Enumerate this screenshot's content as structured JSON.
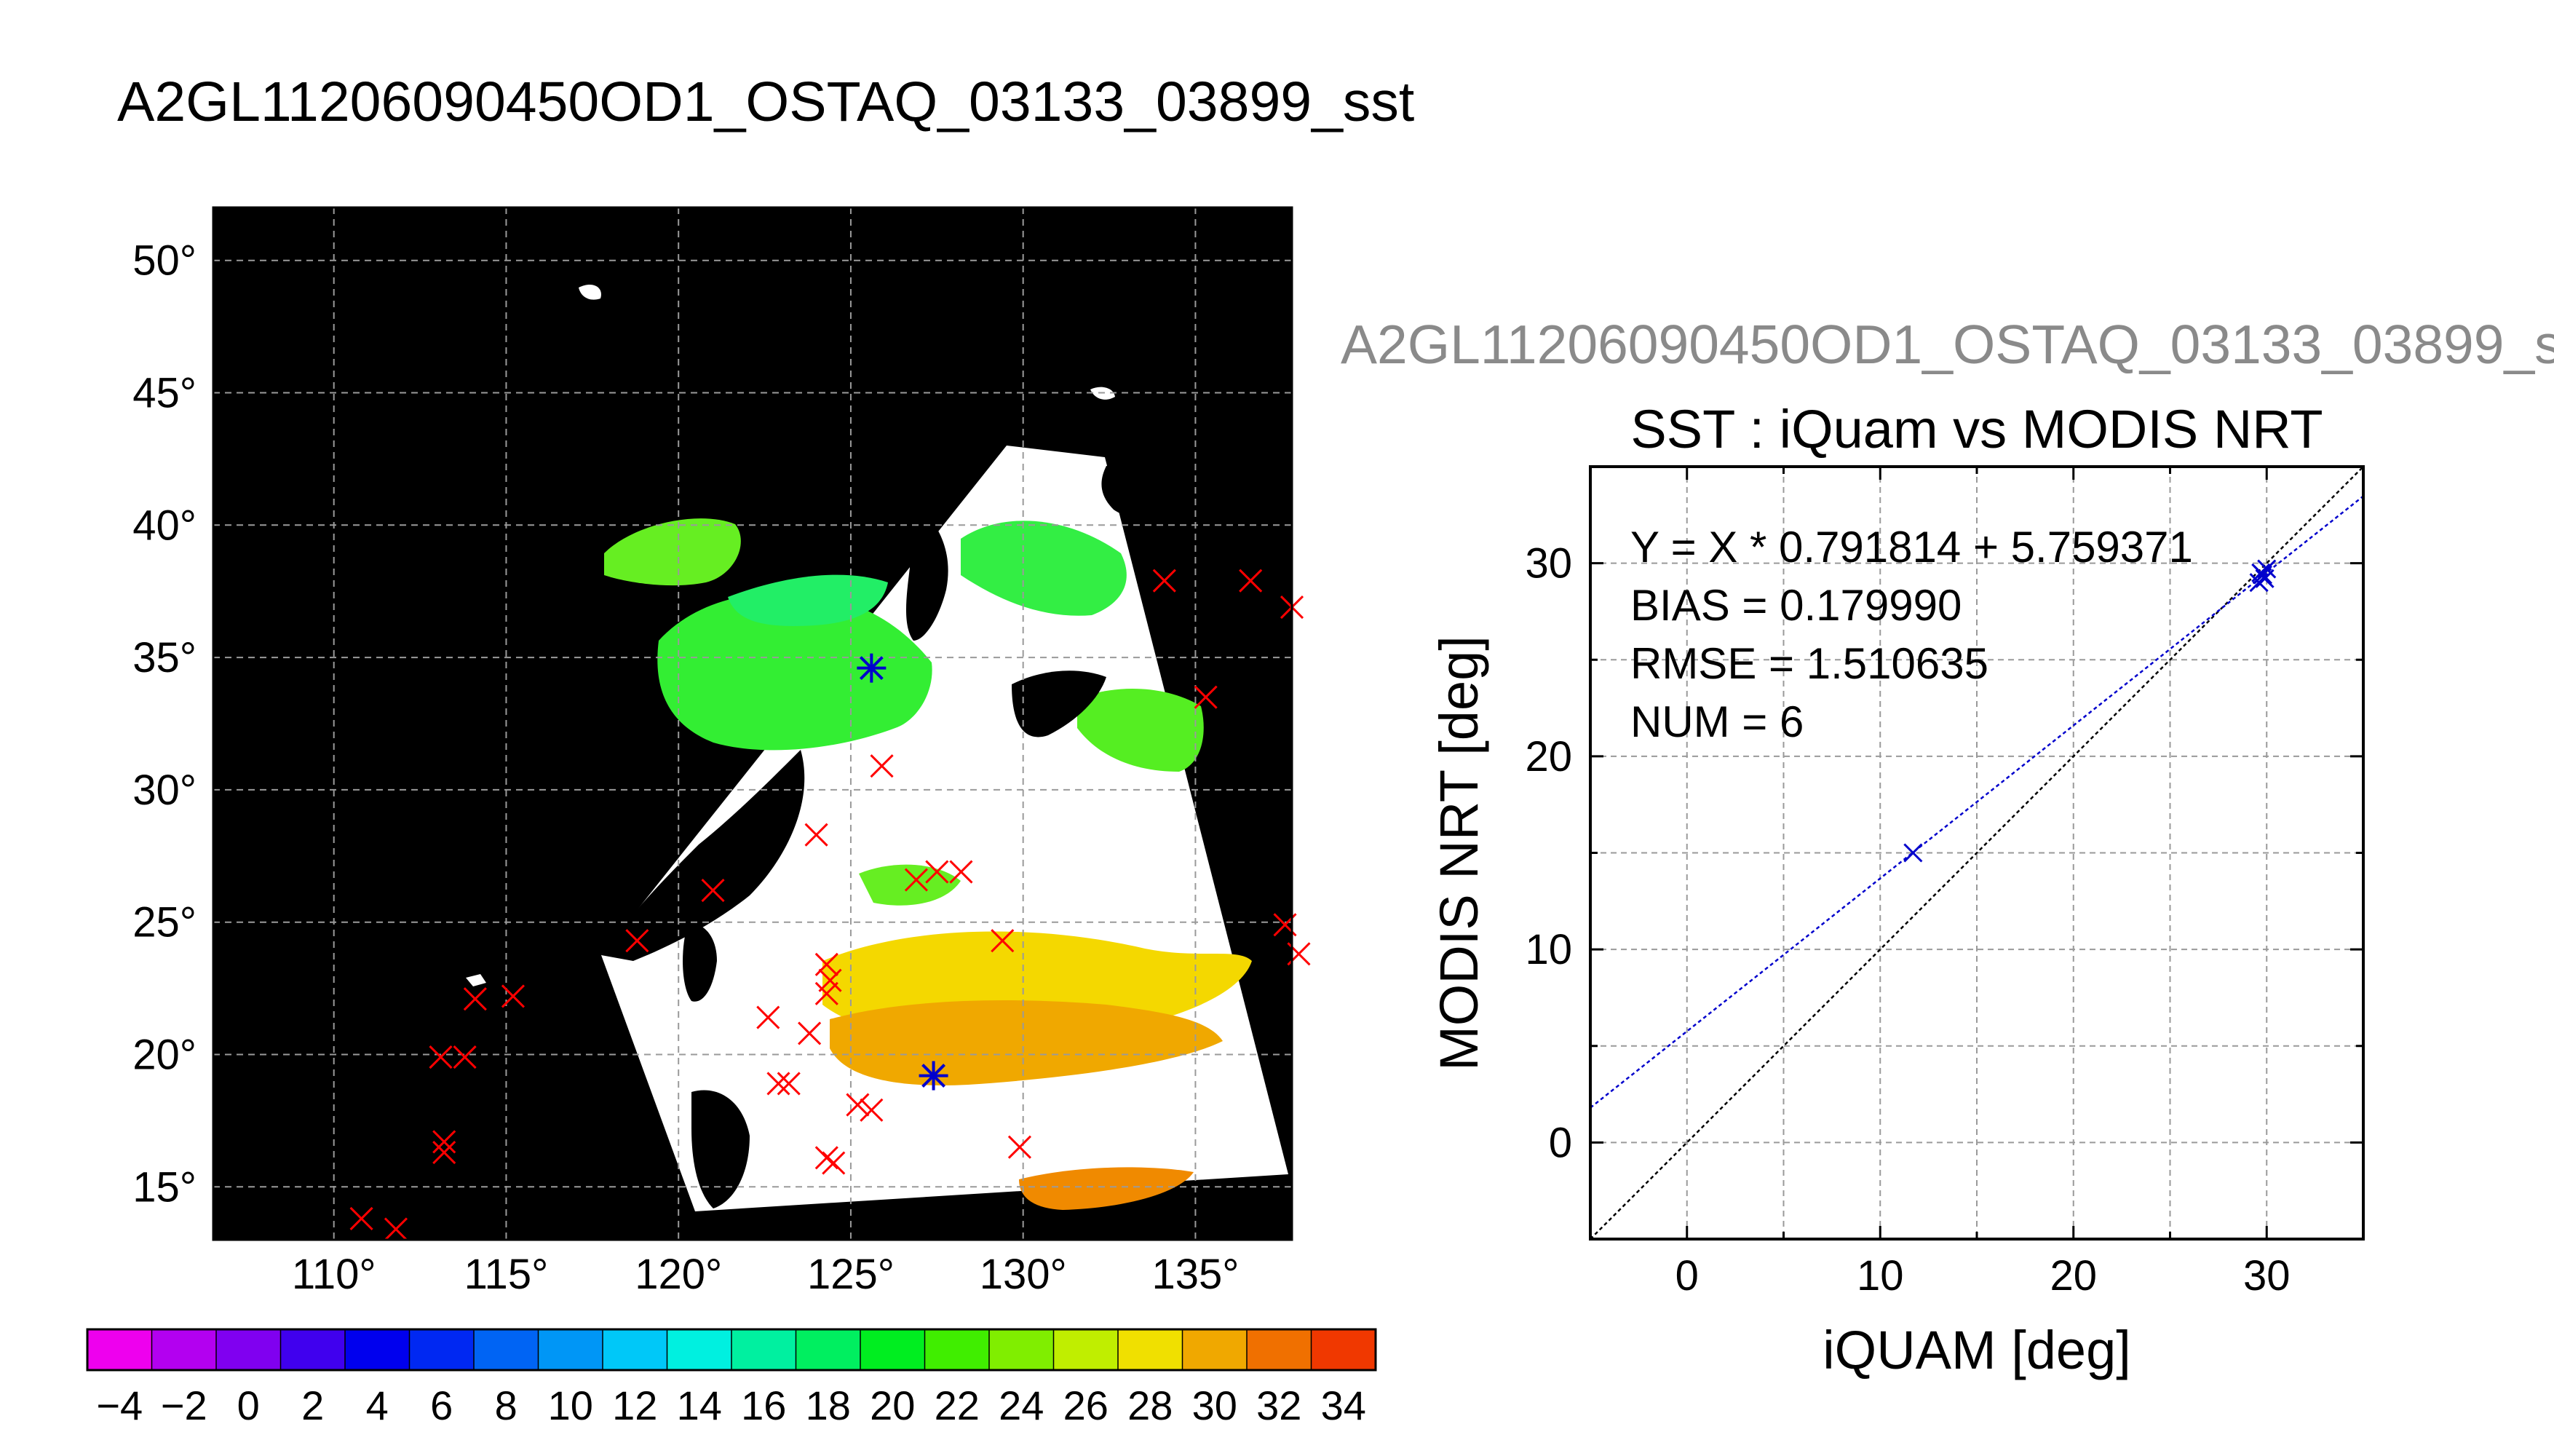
{
  "header": {
    "title": "A2GL11206090450OD1_OSTAQ_03133_03899_sst",
    "second_title": "A2GL11206090450OD1_OSTAQ_03133_03899_s"
  },
  "colors": {
    "map_background": "#000000",
    "match_marker": "#ff0000",
    "selected_marker": "#0000cc",
    "fit_line": "#0000cc",
    "one_to_one_line": "#000000"
  },
  "chart_data": [
    {
      "type": "map",
      "name": "sst-map",
      "lon_range": [
        106.5,
        137.8
      ],
      "lat_range": [
        13,
        52
      ],
      "xticks": [
        110,
        115,
        120,
        125,
        130,
        135
      ],
      "yticks": [
        15,
        20,
        25,
        30,
        35,
        40,
        45,
        50
      ],
      "tick_suffix": "°",
      "grid": true,
      "matchups": [
        [
          110.8,
          13.8
        ],
        [
          111.8,
          13.4
        ],
        [
          113.1,
          19.9
        ],
        [
          113.8,
          19.9
        ],
        [
          113.2,
          16.7
        ],
        [
          113.2,
          16.3
        ],
        [
          114.1,
          22.1
        ],
        [
          115.2,
          22.2
        ],
        [
          118.8,
          24.3
        ],
        [
          121.0,
          26.2
        ],
        [
          122.6,
          21.4
        ],
        [
          122.9,
          18.9
        ],
        [
          123.2,
          18.9
        ],
        [
          124.0,
          28.3
        ],
        [
          123.8,
          20.8
        ],
        [
          124.3,
          22.3
        ],
        [
          124.4,
          22.8
        ],
        [
          124.3,
          23.4
        ],
        [
          124.3,
          16.1
        ],
        [
          124.5,
          15.9
        ],
        [
          125.2,
          18.1
        ],
        [
          125.6,
          17.9
        ],
        [
          125.9,
          30.9
        ],
        [
          126.9,
          26.6
        ],
        [
          127.5,
          26.9
        ],
        [
          128.2,
          26.9
        ],
        [
          129.4,
          24.3
        ],
        [
          129.9,
          16.5
        ],
        [
          134.1,
          37.9
        ],
        [
          135.3,
          33.5
        ],
        [
          136.6,
          37.9
        ],
        [
          137.8,
          36.9
        ],
        [
          137.6,
          24.9
        ],
        [
          138.0,
          23.8
        ]
      ],
      "selected": [
        [
          125.6,
          34.6
        ],
        [
          127.4,
          19.2
        ]
      ]
    },
    {
      "type": "colorbar",
      "name": "sst-colorbar",
      "min": -5,
      "max": 35,
      "step": 2,
      "tick_labels": [
        "−4",
        "−2",
        "0",
        "2",
        "4",
        "6",
        "8",
        "10",
        "12",
        "14",
        "16",
        "18",
        "20",
        "22",
        "24",
        "26",
        "28",
        "30",
        "32",
        "34"
      ],
      "colors": [
        "#ee00ee",
        "#b300f0",
        "#8000f0",
        "#4000ee",
        "#0000ee",
        "#0028f2",
        "#0064f4",
        "#0096f6",
        "#00c8f8",
        "#00f0e0",
        "#00f0a0",
        "#00ef60",
        "#00ee20",
        "#40ee00",
        "#80ee00",
        "#c0ee00",
        "#f0e000",
        "#f0a800",
        "#f07000",
        "#f03800",
        "#f00000"
      ]
    },
    {
      "type": "scatter",
      "name": "scatter-plot",
      "title": "SST : iQuam vs MODIS NRT",
      "xlabel": "iQUAM [deg]",
      "ylabel": "MODIS NRT [deg]",
      "xlim": [
        -5,
        35
      ],
      "ylim": [
        -5,
        35
      ],
      "xticks": [
        0,
        10,
        20,
        30
      ],
      "yticks": [
        0,
        10,
        20,
        30
      ],
      "grid": true,
      "points": [
        {
          "x": 11.7,
          "y": 15.0
        },
        {
          "x": 29.6,
          "y": 29.0
        },
        {
          "x": 29.8,
          "y": 29.4
        },
        {
          "x": 29.9,
          "y": 29.2
        },
        {
          "x": 30.0,
          "y": 29.7
        },
        {
          "x": 29.7,
          "y": 29.5
        }
      ],
      "fit": {
        "slope": 0.791814,
        "intercept": 5.759371
      },
      "one_to_one": true,
      "stats": [
        "Y = X * 0.791814 + 5.759371",
        "BIAS = 0.179990",
        "RMSE = 1.510635",
        "NUM = 6"
      ]
    }
  ]
}
